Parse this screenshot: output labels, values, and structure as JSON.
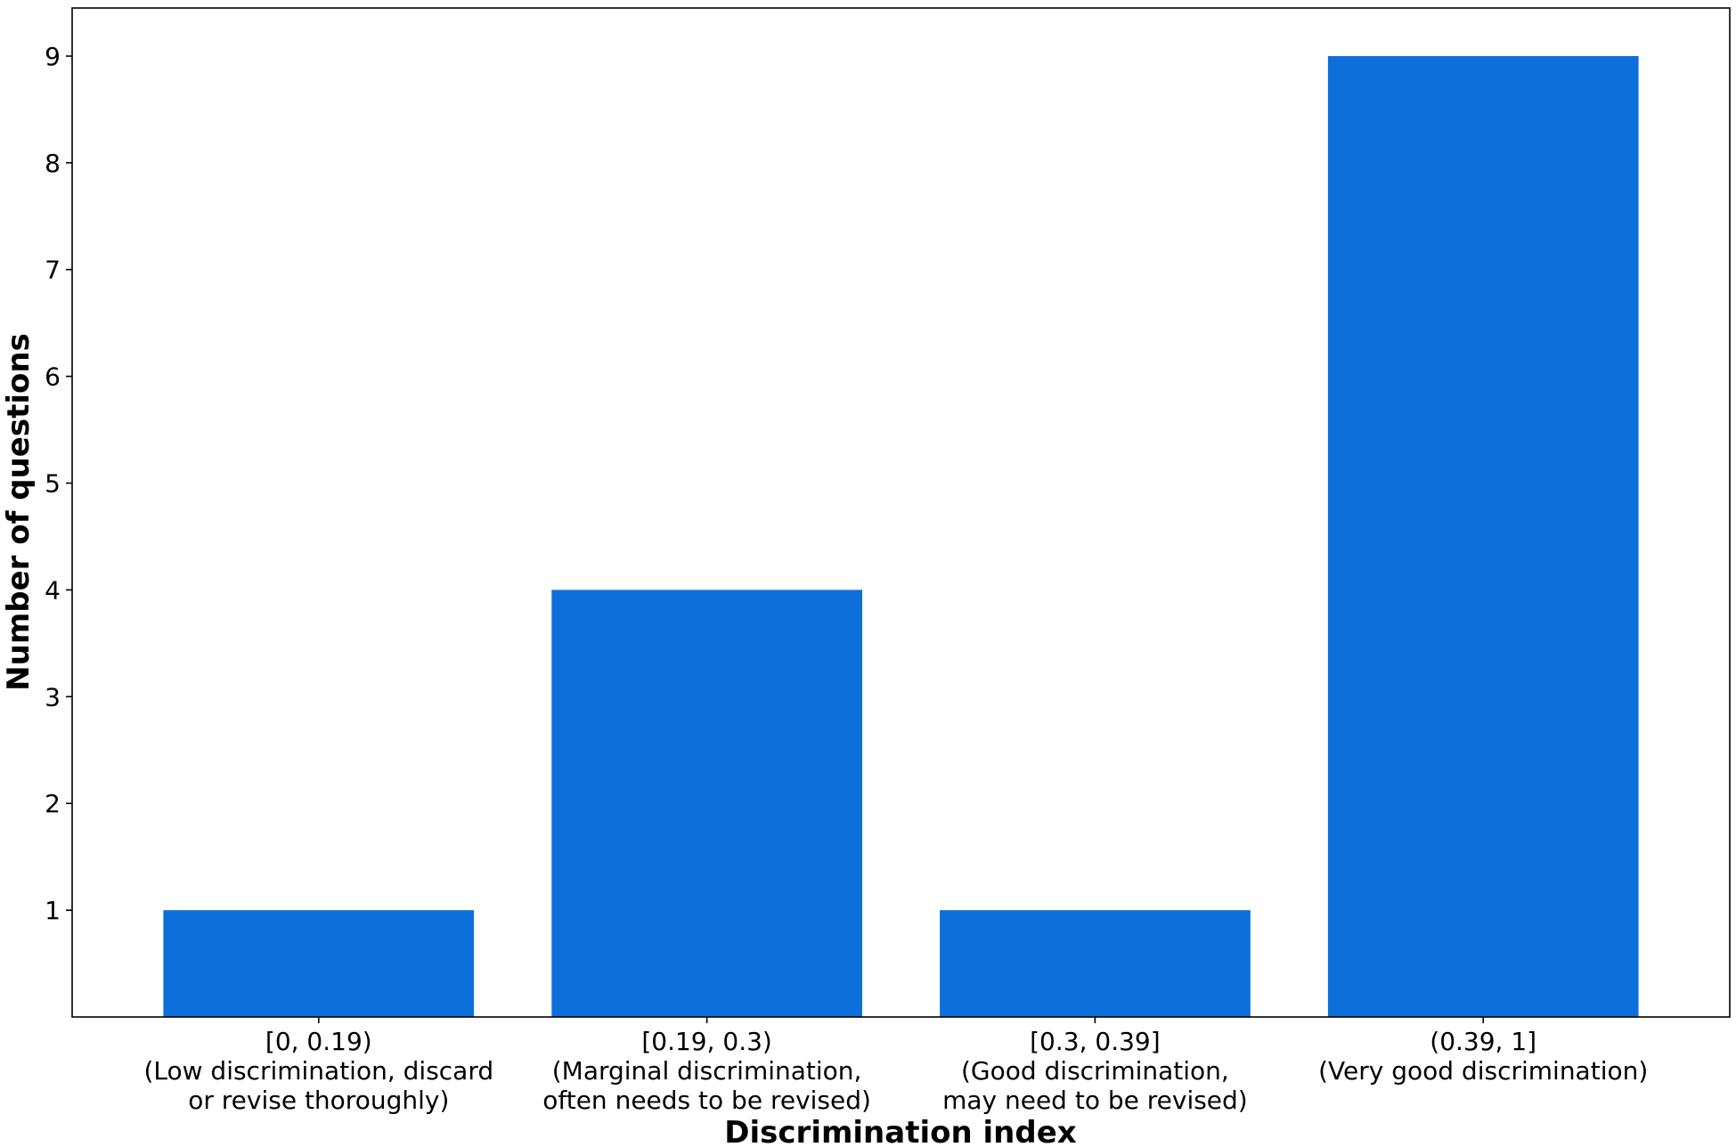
{
  "chart_data": {
    "type": "bar",
    "title": "",
    "xlabel": "Discrimination index",
    "ylabel": "Number of questions",
    "categories": [
      [
        "[0, 0.19)",
        "(Low discrimination, discard",
        "or revise thoroughly)"
      ],
      [
        "[0.19, 0.3)",
        "(Marginal discrimination,",
        "often needs to be revised)"
      ],
      [
        "[0.3, 0.39]",
        "(Good discrimination,",
        "may need to be revised)"
      ],
      [
        "(0.39, 1]",
        "(Very good discrimination)"
      ]
    ],
    "values": [
      1,
      4,
      1,
      9
    ],
    "ylim": [
      0,
      9.45
    ],
    "yticks": [
      1,
      2,
      3,
      4,
      5,
      6,
      7,
      8,
      9
    ],
    "grid": false,
    "bar_color": "#0d6fda"
  }
}
